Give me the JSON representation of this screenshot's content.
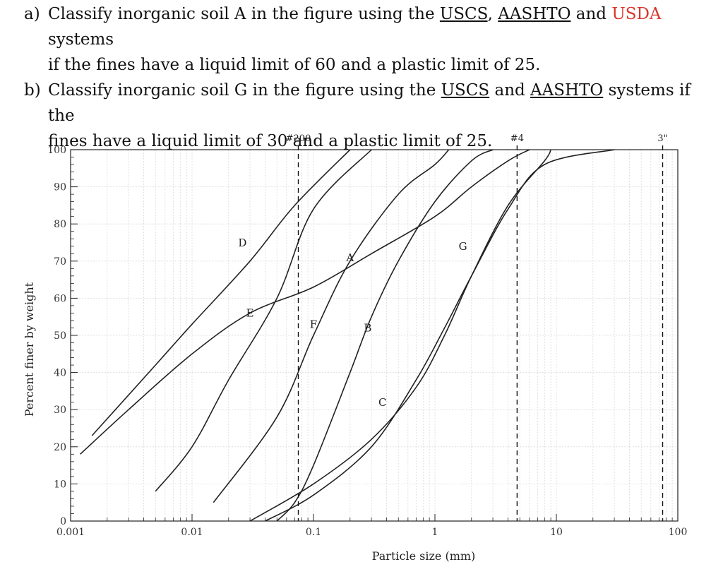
{
  "question": {
    "a": {
      "marker": "a)",
      "line1_pre": "Classify inorganic soil A in the figure using the ",
      "uscs": "USCS",
      "sep1": ", ",
      "aashto": "AASHTO",
      "sep2": " and ",
      "usda": "USDA",
      "line1_post": " systems",
      "line2": "if the fines have a liquid limit of 60 and a plastic limit of 25."
    },
    "b": {
      "marker": "b)",
      "line1_pre": "Classify inorganic soil G in the figure using the ",
      "uscs": "USCS",
      "sep1": " and ",
      "aashto": "AASHTO",
      "line1_post": " systems if the",
      "line2": "fines have a liquid limit of 30 and a plastic limit of 25."
    },
    "accent_color": "#d9362b"
  },
  "chart_data": {
    "type": "line",
    "title": "",
    "xlabel": "Particle size (mm)",
    "ylabel": "Percent finer by weight",
    "x_scale": "log",
    "xlim": [
      0.001,
      100
    ],
    "ylim": [
      0,
      100
    ],
    "x_ticks": [
      {
        "value": 0.001,
        "label": "0.001"
      },
      {
        "value": 0.01,
        "label": "0.01"
      },
      {
        "value": 0.1,
        "label": "0.1"
      },
      {
        "value": 1,
        "label": "1"
      },
      {
        "value": 10,
        "label": "10"
      },
      {
        "value": 100,
        "label": "100"
      }
    ],
    "y_ticks": [
      0,
      10,
      20,
      30,
      40,
      50,
      60,
      70,
      80,
      90,
      100
    ],
    "grid": true,
    "sieve_lines": [
      {
        "label": "#200",
        "x": 0.075
      },
      {
        "label": "#4",
        "x": 4.75
      },
      {
        "label": "3\"",
        "x": 75
      }
    ],
    "series": [
      {
        "name": "A",
        "label_at": [
          0.2,
          70
        ],
        "points": [
          [
            0.0012,
            18
          ],
          [
            0.003,
            30
          ],
          [
            0.01,
            45
          ],
          [
            0.03,
            56
          ],
          [
            0.1,
            63
          ],
          [
            0.3,
            72
          ],
          [
            1,
            82
          ],
          [
            2,
            90
          ],
          [
            4,
            97
          ],
          [
            6,
            100
          ]
        ]
      },
      {
        "name": "B",
        "label_at": [
          0.28,
          51
        ],
        "points": [
          [
            0.05,
            0
          ],
          [
            0.07,
            5
          ],
          [
            0.1,
            15
          ],
          [
            0.2,
            40
          ],
          [
            0.3,
            55
          ],
          [
            0.5,
            70
          ],
          [
            1,
            86
          ],
          [
            2,
            97
          ],
          [
            3,
            100
          ]
        ]
      },
      {
        "name": "C",
        "label_at": [
          0.37,
          31
        ],
        "points": [
          [
            0.03,
            0
          ],
          [
            0.1,
            10
          ],
          [
            0.3,
            22
          ],
          [
            0.7,
            36
          ],
          [
            1.2,
            50
          ],
          [
            2,
            66
          ],
          [
            4,
            85
          ],
          [
            8,
            97
          ],
          [
            9,
            100
          ]
        ]
      },
      {
        "name": "D",
        "label_at": [
          0.026,
          74
        ],
        "points": [
          [
            0.0015,
            23
          ],
          [
            0.005,
            42
          ],
          [
            0.01,
            53
          ],
          [
            0.03,
            70
          ],
          [
            0.07,
            85
          ],
          [
            0.2,
            100
          ]
        ]
      },
      {
        "name": "E",
        "label_at": [
          0.03,
          55
        ],
        "points": [
          [
            0.005,
            8
          ],
          [
            0.01,
            20
          ],
          [
            0.02,
            38
          ],
          [
            0.05,
            60
          ],
          [
            0.1,
            84
          ],
          [
            0.3,
            100
          ]
        ]
      },
      {
        "name": "F",
        "label_at": [
          0.1,
          52
        ],
        "points": [
          [
            0.015,
            5
          ],
          [
            0.05,
            28
          ],
          [
            0.1,
            50
          ],
          [
            0.2,
            70
          ],
          [
            0.5,
            88
          ],
          [
            1,
            96
          ],
          [
            1.3,
            100
          ]
        ]
      },
      {
        "name": "G",
        "label_at": [
          1.7,
          73
        ],
        "points": [
          [
            0.04,
            0
          ],
          [
            0.1,
            7
          ],
          [
            0.3,
            20
          ],
          [
            0.7,
            38
          ],
          [
            1.2,
            52
          ],
          [
            2,
            66
          ],
          [
            4,
            84
          ],
          [
            8,
            96
          ],
          [
            30,
            100
          ]
        ]
      }
    ]
  }
}
